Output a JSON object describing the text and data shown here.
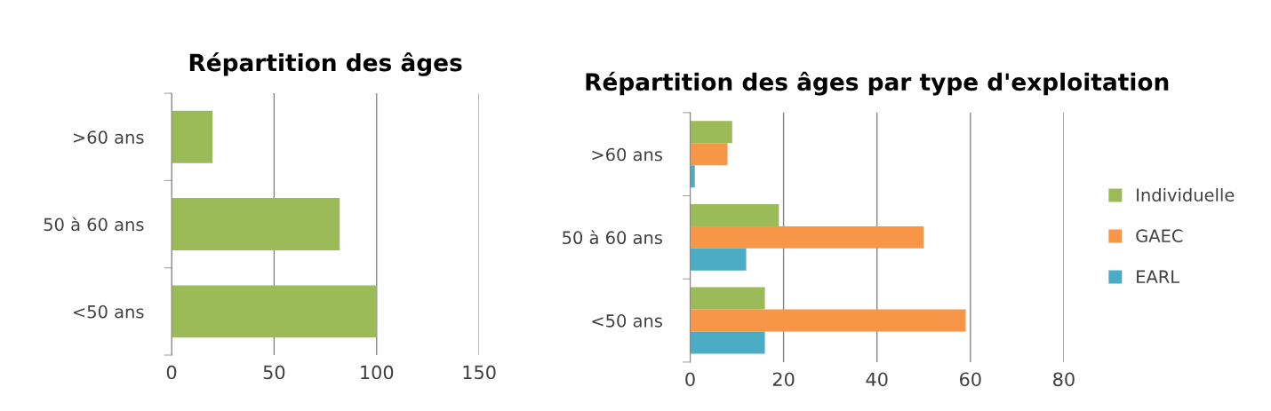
{
  "chart_data": [
    {
      "type": "bar",
      "orientation": "horizontal",
      "title": "Répartition des âges",
      "categories": [
        ">60 ans",
        "50 à 60 ans",
        "<50 ans"
      ],
      "series": [
        {
          "color": "#9bbb59",
          "values": [
            20,
            82,
            100
          ]
        }
      ],
      "xlim": [
        0,
        150
      ],
      "xticks": [
        0,
        50,
        100,
        150
      ],
      "grid": "x",
      "legend": false
    },
    {
      "type": "bar",
      "orientation": "horizontal",
      "title": "Répartition des âges par type d'exploitation",
      "categories": [
        ">60 ans",
        "50 à 60 ans",
        "<50 ans"
      ],
      "series": [
        {
          "name": "Individuelle",
          "color": "#9bbb59",
          "values": [
            9,
            19,
            16
          ]
        },
        {
          "name": "GAEC",
          "color": "#f79646",
          "values": [
            8,
            50,
            59
          ]
        },
        {
          "name": "EARL",
          "color": "#4bacc6",
          "values": [
            1,
            12,
            16
          ]
        }
      ],
      "xlim": [
        0,
        80
      ],
      "xticks": [
        0,
        20,
        40,
        60,
        80
      ],
      "grid": "x",
      "legend": "right"
    }
  ]
}
